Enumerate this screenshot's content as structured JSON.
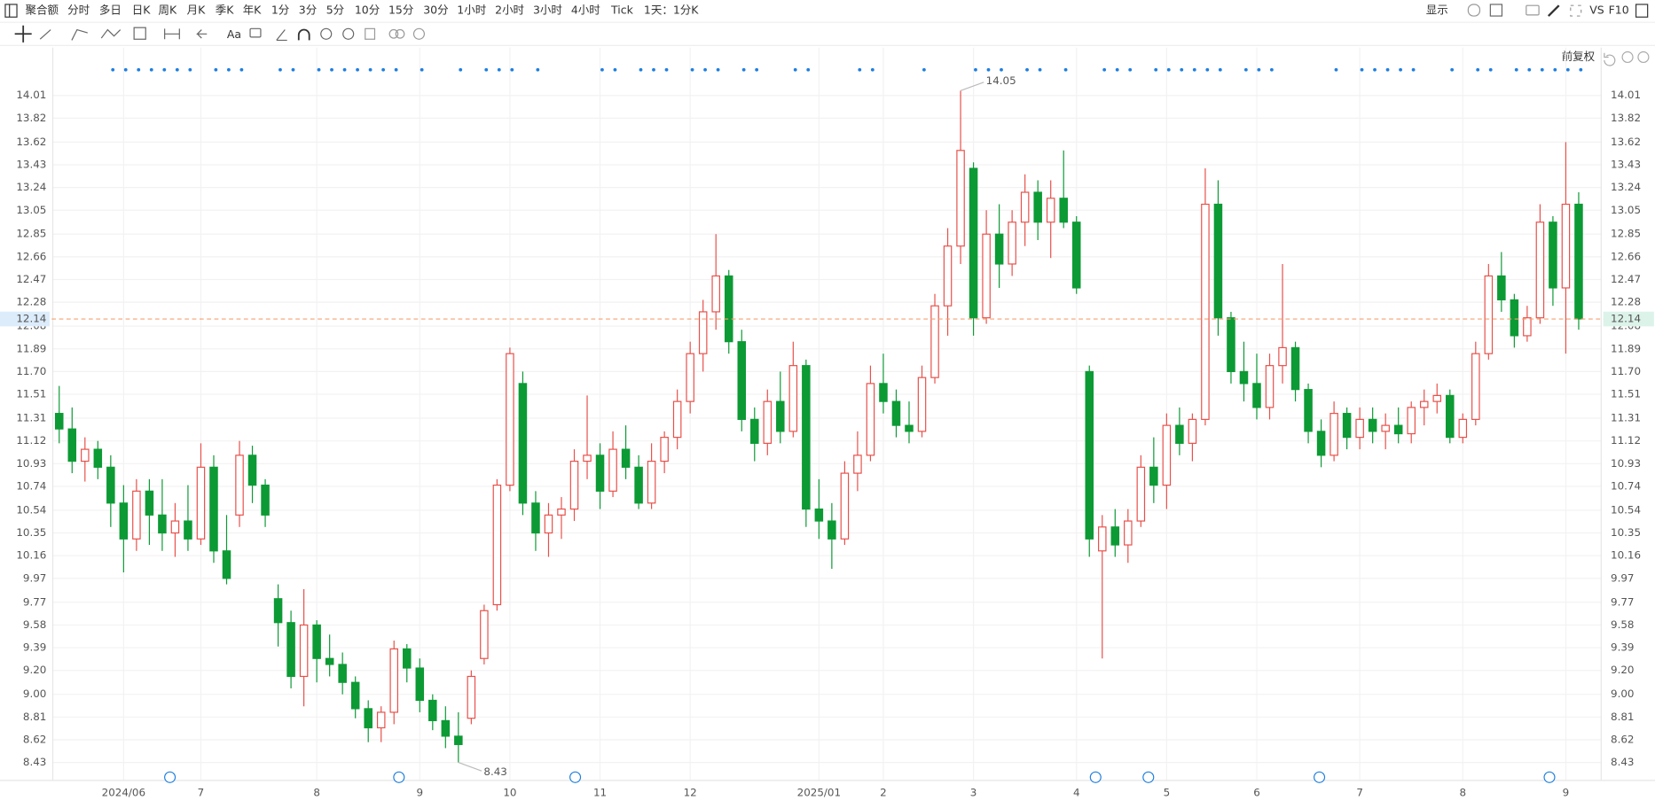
{
  "toolbar": {
    "periods": [
      "聚合额",
      "分时",
      "多日",
      "日K",
      "周K",
      "月K",
      "季K",
      "年K",
      "1分",
      "3分",
      "5分",
      "10分",
      "15分",
      "30分",
      "1小时",
      "2小时",
      "3小时",
      "4小时",
      "Tick",
      "1天：1分K"
    ],
    "display": "显示",
    "vs": "VS",
    "f10": "F10",
    "text_tool": "Aa"
  },
  "chart_data": {
    "type": "candlestick",
    "adjust_label": "前复权",
    "categories": [
      null,
      null,
      null,
      null,
      null,
      "2024/06",
      null,
      null,
      null,
      null,
      null,
      "7",
      null,
      null,
      null,
      null,
      null,
      null,
      null,
      null,
      "8",
      null,
      null,
      null,
      null,
      null,
      null,
      null,
      "9",
      null,
      null,
      null,
      null,
      null,
      null,
      "10",
      null,
      null,
      null,
      null,
      null,
      null,
      "11",
      null,
      null,
      null,
      null,
      null,
      null,
      "12",
      null,
      null,
      null,
      null,
      null,
      null,
      null,
      null,
      null,
      "2025/01",
      null,
      null,
      null,
      null,
      "2",
      null,
      null,
      null,
      null,
      null,
      null,
      "3",
      null,
      null,
      null,
      null,
      null,
      null,
      null,
      "4",
      null,
      null,
      null,
      null,
      null,
      null,
      "5",
      null,
      null,
      null,
      null,
      null,
      null,
      "6",
      null,
      null,
      null,
      null,
      null,
      null,
      null,
      "7",
      null,
      null,
      null,
      null,
      null,
      null,
      null,
      "8",
      null,
      null,
      null,
      null,
      null,
      null,
      null,
      "9",
      null
    ],
    "open": [
      11.35,
      11.22,
      10.95,
      11.05,
      10.9,
      10.6,
      10.3,
      10.7,
      10.5,
      10.35,
      10.45,
      10.3,
      10.9,
      10.2,
      10.5,
      11.0,
      10.75,
      9.8,
      9.6,
      9.15,
      9.58,
      9.3,
      9.25,
      9.1,
      8.88,
      8.72,
      8.85,
      9.38,
      9.22,
      8.95,
      8.78,
      8.65,
      8.8,
      9.3,
      9.75,
      10.75,
      11.6,
      10.6,
      10.35,
      10.5,
      10.55,
      10.95,
      11.0,
      10.7,
      11.05,
      10.9,
      10.6,
      10.95,
      11.15,
      11.45,
      11.85,
      12.2,
      12.5,
      11.95,
      11.3,
      11.1,
      11.45,
      11.2,
      11.75,
      10.55,
      10.45,
      10.3,
      10.85,
      11.0,
      11.6,
      11.45,
      11.25,
      11.2,
      11.65,
      12.25,
      12.75,
      13.4,
      12.15,
      12.85,
      12.6,
      12.95,
      13.2,
      12.95,
      13.15,
      12.95,
      11.7,
      10.2,
      10.4,
      10.25,
      10.45,
      10.9,
      10.75,
      11.25,
      11.1,
      11.3,
      13.1,
      12.15,
      11.7,
      11.6,
      11.4,
      11.75,
      11.9,
      11.55,
      11.2,
      11.0,
      11.35,
      11.15,
      11.3,
      11.2,
      11.25,
      11.18,
      11.4,
      11.45,
      11.5,
      11.15,
      11.3,
      11.85,
      12.5,
      12.3,
      12.0,
      12.15,
      12.95,
      12.4,
      13.1
    ],
    "high": [
      11.58,
      11.4,
      11.15,
      11.12,
      11.0,
      10.75,
      10.8,
      10.8,
      10.8,
      10.6,
      10.75,
      11.1,
      11.0,
      10.5,
      11.12,
      11.08,
      10.8,
      9.92,
      9.7,
      9.88,
      9.62,
      9.5,
      9.35,
      9.15,
      8.95,
      8.9,
      9.45,
      9.42,
      9.3,
      9.0,
      8.9,
      8.85,
      9.2,
      9.75,
      10.8,
      11.9,
      11.7,
      10.7,
      10.6,
      10.65,
      11.05,
      11.5,
      11.1,
      11.2,
      11.25,
      11.0,
      11.1,
      11.2,
      11.55,
      11.95,
      12.3,
      12.85,
      12.55,
      12.05,
      11.4,
      11.55,
      11.7,
      11.95,
      11.8,
      10.8,
      10.6,
      10.95,
      11.2,
      11.75,
      11.85,
      11.55,
      11.45,
      11.75,
      12.35,
      12.9,
      14.05,
      13.45,
      13.05,
      13.1,
      13.05,
      13.35,
      13.3,
      13.3,
      13.55,
      13.0,
      11.75,
      10.5,
      10.55,
      10.55,
      11.0,
      11.15,
      11.35,
      11.4,
      11.35,
      13.4,
      13.3,
      12.2,
      11.95,
      11.85,
      11.85,
      12.6,
      11.95,
      11.6,
      11.3,
      11.45,
      11.4,
      11.4,
      11.4,
      11.35,
      11.4,
      11.45,
      11.55,
      11.6,
      11.55,
      11.35,
      11.95,
      12.6,
      12.7,
      12.35,
      12.25,
      13.1,
      13.0,
      13.62,
      13.2
    ],
    "low": [
      11.1,
      10.85,
      10.78,
      10.8,
      10.4,
      10.02,
      10.2,
      10.25,
      10.2,
      10.15,
      10.2,
      10.25,
      10.1,
      9.92,
      10.4,
      10.6,
      10.4,
      9.4,
      9.05,
      8.9,
      9.1,
      9.15,
      9.0,
      8.8,
      8.6,
      8.6,
      8.75,
      9.1,
      8.85,
      8.7,
      8.55,
      8.43,
      8.75,
      9.25,
      9.7,
      10.7,
      10.5,
      10.2,
      10.15,
      10.3,
      10.45,
      10.8,
      10.55,
      10.65,
      10.8,
      10.55,
      10.55,
      10.85,
      11.05,
      11.35,
      11.7,
      12.05,
      11.85,
      11.2,
      10.95,
      11.0,
      11.1,
      11.15,
      10.4,
      10.3,
      10.05,
      10.25,
      10.7,
      10.95,
      11.35,
      11.15,
      11.1,
      11.15,
      11.6,
      12.0,
      12.6,
      12.0,
      12.1,
      12.4,
      12.5,
      12.75,
      12.8,
      12.65,
      12.9,
      12.35,
      10.15,
      9.3,
      10.15,
      10.1,
      10.4,
      10.6,
      10.55,
      11.0,
      10.95,
      11.25,
      12.0,
      11.6,
      11.45,
      11.3,
      11.3,
      11.6,
      11.45,
      11.1,
      10.9,
      10.95,
      11.05,
      11.05,
      11.1,
      11.05,
      11.1,
      11.1,
      11.25,
      11.35,
      11.1,
      11.1,
      11.25,
      11.8,
      12.2,
      11.9,
      11.95,
      12.1,
      12.25,
      11.85,
      12.05
    ],
    "close": [
      11.22,
      10.95,
      11.05,
      10.9,
      10.6,
      10.3,
      10.7,
      10.5,
      10.35,
      10.45,
      10.3,
      10.9,
      10.2,
      9.97,
      11.0,
      10.75,
      10.5,
      9.6,
      9.15,
      9.58,
      9.3,
      9.25,
      9.1,
      8.88,
      8.72,
      8.85,
      9.38,
      9.22,
      8.95,
      8.78,
      8.65,
      8.58,
      9.15,
      9.7,
      10.75,
      11.85,
      10.6,
      10.35,
      10.5,
      10.55,
      10.95,
      11.0,
      10.7,
      11.05,
      10.9,
      10.6,
      10.95,
      11.15,
      11.45,
      11.85,
      12.2,
      12.5,
      11.95,
      11.3,
      11.1,
      11.45,
      11.2,
      11.75,
      10.55,
      10.45,
      10.3,
      10.85,
      11.0,
      11.6,
      11.45,
      11.25,
      11.2,
      11.65,
      12.25,
      12.75,
      13.55,
      12.15,
      12.85,
      12.6,
      12.95,
      13.2,
      12.95,
      13.15,
      12.95,
      12.4,
      10.3,
      10.4,
      10.25,
      10.45,
      10.9,
      10.75,
      11.25,
      11.1,
      11.3,
      13.1,
      12.15,
      11.7,
      11.6,
      11.4,
      11.75,
      11.9,
      11.55,
      11.2,
      11.0,
      11.35,
      11.15,
      11.3,
      11.2,
      11.25,
      11.18,
      11.4,
      11.45,
      11.5,
      11.15,
      11.3,
      11.85,
      12.5,
      12.3,
      12.0,
      12.15,
      12.95,
      12.4,
      13.1,
      12.14
    ],
    "up_color": "#e8504a",
    "down_color": "#0c9a35",
    "ylim": [
      8.28,
      14.41
    ],
    "yticks": [
      14.01,
      13.82,
      13.62,
      13.43,
      13.24,
      13.05,
      12.85,
      12.66,
      12.47,
      12.28,
      12.08,
      11.89,
      {
        "value": 11.7,
        "label": "11.70"
      },
      11.51,
      11.31,
      11.12,
      10.93,
      10.74,
      10.54,
      10.35,
      10.16,
      9.97,
      9.77,
      9.58,
      9.39,
      {
        "value": 9.2,
        "label": "9.20"
      },
      {
        "value": 9,
        "label": "9.00"
      },
      8.81,
      8.62,
      8.43
    ],
    "grid": true,
    "high_label": {
      "value": 14.05,
      "label": "14.05"
    },
    "low_label": {
      "value": 8.43,
      "label": "8.43"
    },
    "last_price": {
      "value": 12.14,
      "label": "12.14"
    }
  }
}
